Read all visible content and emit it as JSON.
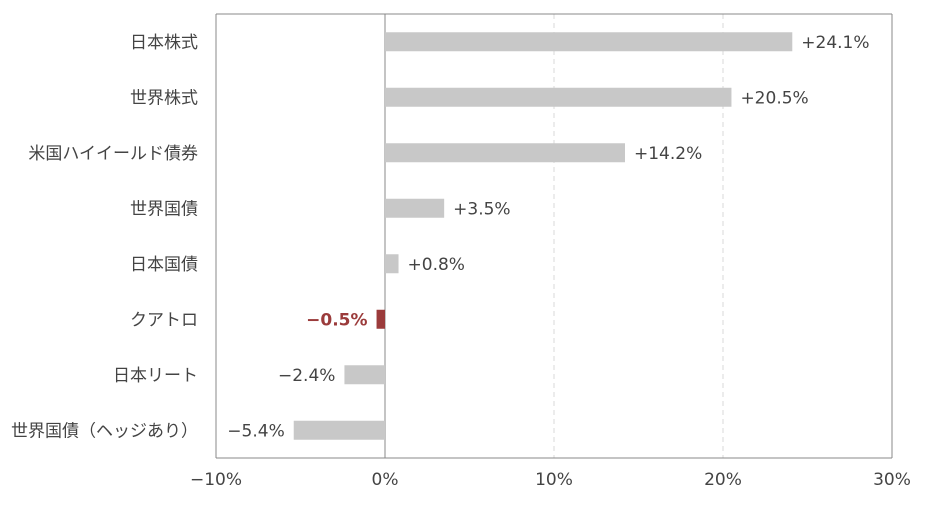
{
  "chart_data": {
    "type": "bar",
    "orientation": "horizontal",
    "categories": [
      "日本株式",
      "世界株式",
      "米国ハイイールド債券",
      "世界国債",
      "日本国債",
      "クアトロ",
      "日本リート",
      "世界国債（ヘッジあり）"
    ],
    "values": [
      24.1,
      20.5,
      14.2,
      3.5,
      0.8,
      -0.5,
      -2.4,
      -5.4
    ],
    "value_labels": [
      "+24.1%",
      "+20.5%",
      "+14.2%",
      "+3.5%",
      "+0.8%",
      "−0.5%",
      "−2.4%",
      "−5.4%"
    ],
    "highlight_category": "クアトロ",
    "xlim": [
      -10,
      30
    ],
    "x_ticks": [
      -10,
      0,
      10,
      20,
      30
    ],
    "x_tick_labels": [
      "−10%",
      "0%",
      "10%",
      "20%",
      "30%"
    ],
    "grid": "vertical dashed",
    "title": "",
    "xlabel": "",
    "ylabel": ""
  },
  "colors": {
    "bar": "#c8c8c8",
    "highlight_bar": "#9b3b3b",
    "highlight_label": "#9b3b3b",
    "text": "#444444",
    "axis": "#888888",
    "grid": "#d8d8d8"
  }
}
